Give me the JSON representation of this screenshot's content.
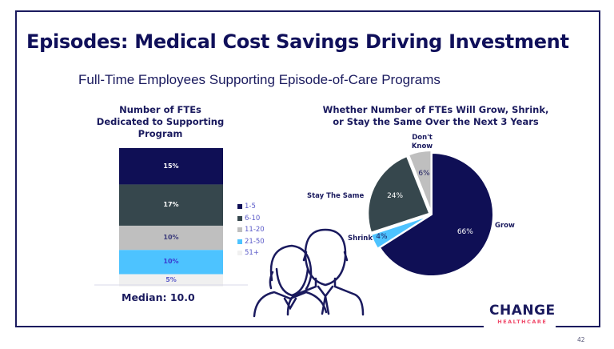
{
  "title": "Episodes: Medical Cost Savings Driving Investment",
  "subtitle": "Full-Time Employees Supporting Episode-of-Care Programs",
  "page_number": "42",
  "logo": {
    "main": "CHANGE",
    "sub": "HEALTHCARE"
  },
  "chart_data": [
    {
      "type": "bar",
      "stacked": true,
      "title": "Number of FTEs Dedicated to Supporting Program",
      "categories": [
        "1-5",
        "6-10",
        "11-20",
        "21-50",
        "51+"
      ],
      "values": [
        15,
        17,
        10,
        10,
        5
      ],
      "labels": [
        "15%",
        "17%",
        "10%",
        "10%",
        "5%"
      ],
      "colors": [
        "#0f0f55",
        "#36474d",
        "#bfbfbf",
        "#4dc3ff",
        "#f0f0f0"
      ],
      "label_colors": [
        "#ffffff",
        "#ffffff",
        "#3a3a7a",
        "#3a3ad0",
        "#5a5ac8"
      ],
      "legend": [
        "1-5",
        "6-10",
        "11-20",
        "21-50",
        "51+"
      ],
      "legend_placement": "right",
      "annotation": "Median:  10.0"
    },
    {
      "type": "pie",
      "title": "Whether Number of FTEs Will Grow, Shrink, or Stay the Same Over the Next 3 Years",
      "categories": [
        "Grow",
        "Shrink",
        "Stay The Same",
        "Don't Know"
      ],
      "values": [
        66,
        4,
        24,
        6
      ],
      "labels": [
        "66%",
        "4%",
        "24%",
        "6%"
      ],
      "colors": [
        "#0f0f55",
        "#4dc3ff",
        "#36474d",
        "#bfbfbf"
      ],
      "label_colors": [
        "#ffffff",
        "#1a1a5e",
        "#ffffff",
        "#1a1a5e"
      ]
    }
  ]
}
